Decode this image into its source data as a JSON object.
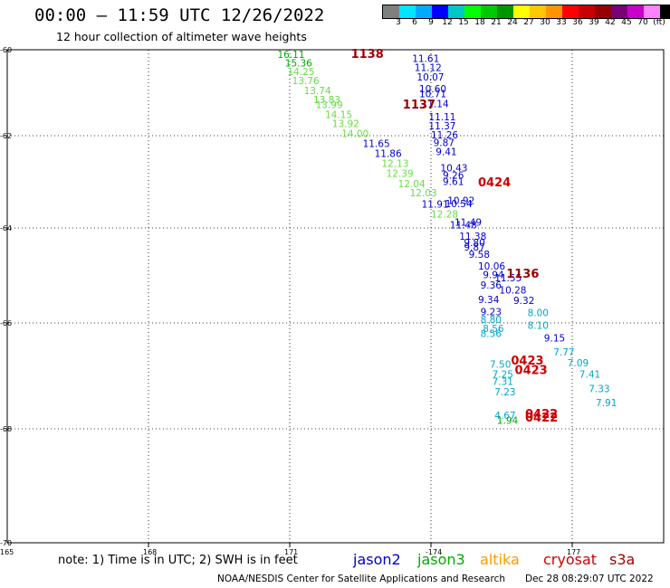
{
  "header": {
    "title": "00:00 — 11:59 UTC 12/26/2022",
    "subtitle": "12 hour collection of altimeter wave heights"
  },
  "colorbar": {
    "colors": [
      "#7f7f7f",
      "#00e5ff",
      "#00aaff",
      "#0000ff",
      "#00c8c8",
      "#00ff00",
      "#00c800",
      "#009600",
      "#ffff00",
      "#ffc800",
      "#ff9600",
      "#ff0000",
      "#c80000",
      "#960000",
      "#780078",
      "#c800c8",
      "#ff82ff",
      "#000000"
    ],
    "labels": [
      "3",
      "6",
      "9",
      "12",
      "15",
      "18",
      "21",
      "24",
      "27",
      "30",
      "33",
      "36",
      "39",
      "42",
      "45",
      "70",
      "(ft)"
    ]
  },
  "map": {
    "lat_ticks": [
      "-60",
      "-62",
      "-64",
      "-66",
      "-68",
      "-70"
    ],
    "lon_ticks": [
      "165",
      "168",
      "171",
      "-174",
      "177"
    ]
  },
  "colors": {
    "jason2": "#0000cc",
    "jason3": "#00aa00",
    "altika": "#ff9900",
    "cryosat": "#cc0000",
    "s3a": "#990000",
    "cyan": "#00a6c8",
    "lightgreen": "#66dd44"
  },
  "passes": [
    {
      "text": "1138",
      "sat": "s3a",
      "lon": 172.3,
      "lat": -60.08
    },
    {
      "text": "1137",
      "sat": "s3a",
      "lon": 173.4,
      "lat": -61.26
    },
    {
      "text": "0424",
      "sat": "cryosat",
      "lon": 175.0,
      "lat": -63.0
    },
    {
      "text": "1136",
      "sat": "s3a",
      "lon": 175.6,
      "lat": -64.95
    },
    {
      "text": "0423",
      "sat": "cryosat",
      "lon": 175.7,
      "lat": -66.7
    },
    {
      "text": "0423",
      "sat": "cryosat",
      "lon": 175.78,
      "lat": -66.88
    },
    {
      "text": "0422",
      "sat": "cryosat",
      "lon": 176.0,
      "lat": -67.71
    },
    {
      "text": "0422",
      "sat": "cryosat",
      "lon": 176.0,
      "lat": -67.78
    }
  ],
  "swh": [
    {
      "text": "16.11",
      "color": "jason3",
      "lon": 170.74,
      "lat": -60.1
    },
    {
      "text": "15.36",
      "color": "jason3",
      "lon": 170.9,
      "lat": -60.3
    },
    {
      "text": "14.25",
      "color": "lightgreen",
      "lon": 170.95,
      "lat": -60.5
    },
    {
      "text": "13.76",
      "color": "lightgreen",
      "lon": 171.05,
      "lat": -60.72
    },
    {
      "text": "13.74",
      "color": "lightgreen",
      "lon": 171.3,
      "lat": -60.95
    },
    {
      "text": "13.83",
      "color": "lightgreen",
      "lon": 171.5,
      "lat": -61.16
    },
    {
      "text": "13.99",
      "color": "lightgreen",
      "lon": 171.55,
      "lat": -61.27
    },
    {
      "text": "14.15",
      "color": "lightgreen",
      "lon": 171.75,
      "lat": -61.5
    },
    {
      "text": "13.92",
      "color": "lightgreen",
      "lon": 171.9,
      "lat": -61.72
    },
    {
      "text": "14.00",
      "color": "lightgreen",
      "lon": 172.1,
      "lat": -61.95
    },
    {
      "text": "11.65",
      "color": "jason2",
      "lon": 172.55,
      "lat": -62.17
    },
    {
      "text": "11.86",
      "color": "jason2",
      "lon": 172.8,
      "lat": -62.38
    },
    {
      "text": "12.13",
      "color": "lightgreen",
      "lon": 172.95,
      "lat": -62.6
    },
    {
      "text": "12.39",
      "color": "lightgreen",
      "lon": 173.05,
      "lat": -62.81
    },
    {
      "text": "12.04",
      "color": "lightgreen",
      "lon": 173.3,
      "lat": -63.04
    },
    {
      "text": "12.03",
      "color": "lightgreen",
      "lon": 173.55,
      "lat": -63.24
    },
    {
      "text": "11.91",
      "color": "jason2",
      "lon": 173.8,
      "lat": -63.48
    },
    {
      "text": "12.28",
      "color": "lightgreen",
      "lon": 174.0,
      "lat": -63.7
    },
    {
      "text": "11.61",
      "color": "jason2",
      "lon": 173.6,
      "lat": -60.2
    },
    {
      "text": "11.12",
      "color": "jason2",
      "lon": 173.65,
      "lat": -60.41
    },
    {
      "text": "10.07",
      "color": "jason2",
      "lon": 173.7,
      "lat": -60.63
    },
    {
      "text": "10.60",
      "color": "jason2",
      "lon": 173.75,
      "lat": -60.9
    },
    {
      "text": "10.71",
      "color": "jason2",
      "lon": 173.75,
      "lat": -61.02
    },
    {
      "text": "11.14",
      "color": "jason2",
      "lon": 173.8,
      "lat": -61.25
    },
    {
      "text": "11.11",
      "color": "jason2",
      "lon": 173.95,
      "lat": -61.56
    },
    {
      "text": "11.37",
      "color": "jason2",
      "lon": 173.95,
      "lat": -61.77
    },
    {
      "text": "11.26",
      "color": "jason2",
      "lon": 174.0,
      "lat": -61.98
    },
    {
      "text": "9.87",
      "color": "jason2",
      "lon": 174.05,
      "lat": -62.15
    },
    {
      "text": "9.41",
      "color": "jason2",
      "lon": 174.1,
      "lat": -62.34
    },
    {
      "text": "10.43",
      "color": "jason2",
      "lon": 174.2,
      "lat": -62.7
    },
    {
      "text": "9.26",
      "color": "jason2",
      "lon": 174.25,
      "lat": -62.85
    },
    {
      "text": "9.61",
      "color": "jason2",
      "lon": 174.25,
      "lat": -62.99
    },
    {
      "text": "10.92",
      "color": "jason2",
      "lon": 174.35,
      "lat": -63.4
    },
    {
      "text": "10.54",
      "color": "jason2",
      "lon": 174.3,
      "lat": -63.47
    },
    {
      "text": "11.49",
      "color": "jason2",
      "lon": 174.5,
      "lat": -63.87
    },
    {
      "text": "11.48",
      "color": "jason2",
      "lon": 174.4,
      "lat": -63.93
    },
    {
      "text": "11.38",
      "color": "jason2",
      "lon": 174.6,
      "lat": -64.17
    },
    {
      "text": "9.80",
      "color": "jason2",
      "lon": 174.7,
      "lat": -64.3
    },
    {
      "text": "9.87",
      "color": "jason2",
      "lon": 174.7,
      "lat": -64.4
    },
    {
      "text": "9.58",
      "color": "jason2",
      "lon": 174.8,
      "lat": -64.55
    },
    {
      "text": "10.06",
      "color": "jason2",
      "lon": 175.0,
      "lat": -64.8
    },
    {
      "text": "9.94",
      "color": "jason2",
      "lon": 175.1,
      "lat": -64.98
    },
    {
      "text": "11.55",
      "color": "jason2",
      "lon": 175.35,
      "lat": -65.05
    },
    {
      "text": "9.36",
      "color": "jason2",
      "lon": 175.05,
      "lat": -65.2
    },
    {
      "text": "10.28",
      "color": "jason2",
      "lon": 175.45,
      "lat": -65.3
    },
    {
      "text": "9.34",
      "color": "jason2",
      "lon": 175.0,
      "lat": -65.5
    },
    {
      "text": "9.32",
      "color": "jason2",
      "lon": 175.75,
      "lat": -65.52
    },
    {
      "text": "9.23",
      "color": "jason2",
      "lon": 175.05,
      "lat": -65.76
    },
    {
      "text": "8.80",
      "color": "cyan",
      "lon": 175.05,
      "lat": -65.92
    },
    {
      "text": "8.00",
      "color": "cyan",
      "lon": 176.05,
      "lat": -65.78
    },
    {
      "text": "8.56",
      "color": "cyan",
      "lon": 175.1,
      "lat": -66.1
    },
    {
      "text": "8.10",
      "color": "cyan",
      "lon": 176.05,
      "lat": -66.04
    },
    {
      "text": "8.56",
      "color": "cyan",
      "lon": 175.05,
      "lat": -66.2
    },
    {
      "text": "9.15",
      "color": "jason2",
      "lon": 176.4,
      "lat": -66.28
    },
    {
      "text": "7.77",
      "color": "cyan",
      "lon": 176.6,
      "lat": -66.55
    },
    {
      "text": "7.50",
      "color": "cyan",
      "lon": 175.25,
      "lat": -66.78
    },
    {
      "text": "7.09",
      "color": "cyan",
      "lon": 176.9,
      "lat": -66.75
    },
    {
      "text": "7.41",
      "color": "cyan",
      "lon": 177.15,
      "lat": -66.97
    },
    {
      "text": "7.25",
      "color": "cyan",
      "lon": 175.3,
      "lat": -66.97
    },
    {
      "text": "7.31",
      "color": "cyan",
      "lon": 175.3,
      "lat": -67.1
    },
    {
      "text": "7.33",
      "color": "cyan",
      "lon": 177.35,
      "lat": -67.24
    },
    {
      "text": "7.23",
      "color": "cyan",
      "lon": 175.35,
      "lat": -67.3
    },
    {
      "text": "7.91",
      "color": "cyan",
      "lon": 177.5,
      "lat": -67.5
    },
    {
      "text": "4.67",
      "color": "cyan",
      "lon": 175.35,
      "lat": -67.74
    },
    {
      "text": "1.94",
      "color": "jason3",
      "lon": 175.4,
      "lat": -67.84
    }
  ],
  "legend": {
    "note": "note: 1) Time is in UTC; 2) SWH is in feet",
    "jason2": "jason2",
    "jason3": "jason3",
    "altika": "altika",
    "cryosat": "cryosat",
    "s3a": "s3a"
  },
  "footer": {
    "credit": "NOAA/NESDIS Center for Satellite Applications and Research",
    "stamp": "Dec 28 08:29:07 UTC 2022"
  }
}
